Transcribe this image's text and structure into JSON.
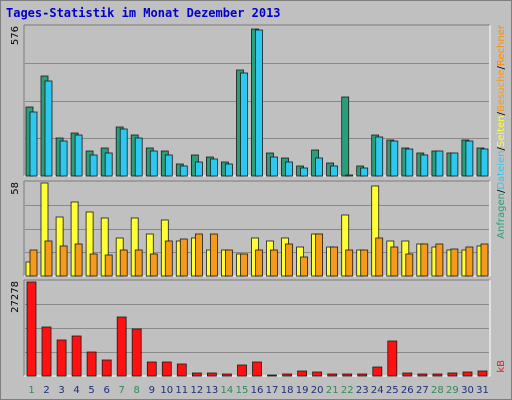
{
  "title": "Tages-Statistik im Monat Dezember 2013",
  "colors": {
    "background": "#c0c0c0",
    "grid": "#8a8a8a",
    "anfragen": "#2a9d7a",
    "dateien": "#2cc8f0",
    "seiten": "#ffff33",
    "besuche": "#f59a1a",
    "rechner": "#ff8c00",
    "kb": "#ff1111",
    "weekend_label": "#2e8b57",
    "weekday_label": "#1b2f7a"
  },
  "chart_data": [
    {
      "type": "bar",
      "panel": "top",
      "ymax_label": "576",
      "ylim": [
        0,
        576
      ],
      "legend": [
        "Anfragen",
        "/",
        "Dateien",
        "/",
        "Seiten",
        "/",
        "Besuche",
        "/",
        "Rechner"
      ],
      "categories": [
        "1",
        "2",
        "3",
        "4",
        "5",
        "6",
        "7",
        "8",
        "9",
        "10",
        "11",
        "12",
        "13",
        "14",
        "15",
        "16",
        "17",
        "18",
        "19",
        "20",
        "21",
        "22",
        "23",
        "24",
        "25",
        "26",
        "27",
        "28",
        "29",
        "30",
        "31"
      ],
      "series": [
        {
          "name": "Anfragen",
          "values": [
            266,
            386,
            146,
            168,
            95,
            108,
            190,
            160,
            110,
            95,
            45,
            80,
            75,
            55,
            410,
            570,
            90,
            68,
            38,
            100,
            50,
            306,
            38,
            160,
            140,
            110,
            88,
            95,
            90,
            140,
            108
          ]
        },
        {
          "name": "Dateien",
          "values": [
            246,
            366,
            136,
            160,
            80,
            90,
            180,
            148,
            96,
            82,
            40,
            55,
            65,
            45,
            400,
            565,
            72,
            55,
            30,
            68,
            40,
            5,
            30,
            150,
            135,
            105,
            80,
            95,
            88,
            135,
            105
          ]
        }
      ]
    },
    {
      "type": "bar",
      "panel": "middle",
      "ymax_label": "58",
      "ylim": [
        0,
        58
      ],
      "categories": [
        "1",
        "2",
        "3",
        "4",
        "5",
        "6",
        "7",
        "8",
        "9",
        "10",
        "11",
        "12",
        "13",
        "14",
        "15",
        "16",
        "17",
        "18",
        "19",
        "20",
        "21",
        "22",
        "23",
        "24",
        "25",
        "26",
        "27",
        "28",
        "29",
        "30",
        "31"
      ],
      "series": [
        {
          "name": "Seiten",
          "values": [
            9,
            58,
            37,
            46,
            40,
            36,
            24,
            36,
            26,
            35,
            22,
            24,
            16,
            16,
            14,
            24,
            22,
            24,
            18,
            26,
            18,
            38,
            16,
            56,
            22,
            22,
            20,
            18,
            16,
            16,
            19
          ]
        },
        {
          "name": "Besuche",
          "values": [
            16,
            22,
            19,
            20,
            14,
            13,
            16,
            16,
            14,
            22,
            23,
            26,
            26,
            16,
            14,
            16,
            16,
            20,
            12,
            26,
            18,
            16,
            16,
            24,
            18,
            14,
            20,
            20,
            17,
            18,
            20
          ]
        }
      ]
    },
    {
      "type": "bar",
      "panel": "bottom",
      "ymax_label": "27278",
      "ylim": [
        0,
        27278
      ],
      "legend": [
        "kB"
      ],
      "categories": [
        "1",
        "2",
        "3",
        "4",
        "5",
        "6",
        "7",
        "8",
        "9",
        "10",
        "11",
        "12",
        "13",
        "14",
        "15",
        "16",
        "17",
        "18",
        "19",
        "20",
        "21",
        "22",
        "23",
        "24",
        "25",
        "26",
        "27",
        "28",
        "29",
        "30",
        "31"
      ],
      "series": [
        {
          "name": "kB",
          "values": [
            27278,
            14200,
            10400,
            11600,
            7100,
            4500,
            17200,
            13700,
            4100,
            4100,
            3600,
            800,
            800,
            500,
            3100,
            4000,
            400,
            600,
            1400,
            1200,
            700,
            500,
            500,
            2500,
            10200,
            900,
            700,
            500,
            1000,
            1200,
            1500
          ]
        }
      ]
    }
  ]
}
